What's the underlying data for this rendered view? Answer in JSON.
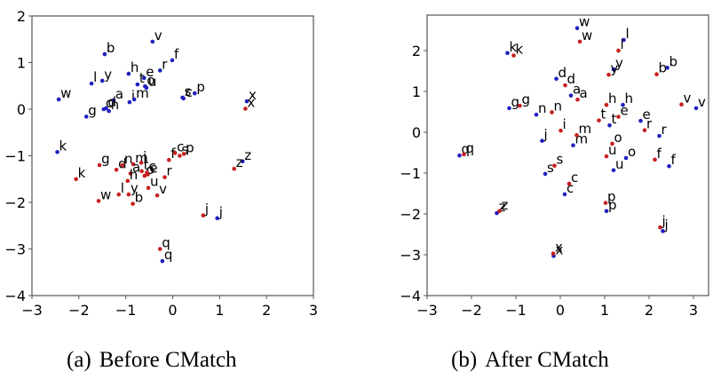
{
  "figure": {
    "captions": [
      {
        "tag": "(a)",
        "text": "Before CMatch"
      },
      {
        "tag": "(b)",
        "text": "After CMatch"
      }
    ]
  },
  "colors": {
    "series_blue": "#1f1fbf",
    "series_red": "#c81e1e",
    "axis": "#555555",
    "text": "#000000"
  },
  "chart_data": [
    {
      "type": "scatter",
      "title": "(a) Before CMatch",
      "xlabel": "",
      "ylabel": "",
      "xlim": [
        -3,
        3
      ],
      "ylim": [
        -4,
        2
      ],
      "xticks": [
        -3,
        -2,
        -1,
        0,
        1,
        2,
        3
      ],
      "yticks": [
        -4,
        -3,
        -2,
        -1,
        0,
        1,
        2
      ],
      "grid": false,
      "legend": null,
      "series": [
        {
          "name": "blue",
          "color": "#1f1fbf",
          "points": [
            {
              "label": "v",
              "x": -0.43,
              "y": 1.45
            },
            {
              "label": "b",
              "x": -1.45,
              "y": 1.18
            },
            {
              "label": "f",
              "x": -0.01,
              "y": 1.05
            },
            {
              "label": "r",
              "x": -0.27,
              "y": 0.83
            },
            {
              "label": "h",
              "x": -0.94,
              "y": 0.76
            },
            {
              "label": "e",
              "x": -0.61,
              "y": 0.67
            },
            {
              "label": "l",
              "x": -1.73,
              "y": 0.55
            },
            {
              "label": "y",
              "x": -1.5,
              "y": 0.61
            },
            {
              "label": "t",
              "x": -0.75,
              "y": 0.53
            },
            {
              "label": "o",
              "x": -0.59,
              "y": 0.49
            },
            {
              "label": "u",
              "x": -0.56,
              "y": 0.46
            },
            {
              "label": "a",
              "x": -1.26,
              "y": 0.19
            },
            {
              "label": "i",
              "x": -0.92,
              "y": 0.15
            },
            {
              "label": "m",
              "x": -0.82,
              "y": 0.21
            },
            {
              "label": "c",
              "x": -1.47,
              "y": 0.0
            },
            {
              "label": "d",
              "x": -1.42,
              "y": 0.02
            },
            {
              "label": "n",
              "x": -1.36,
              "y": -0.04
            },
            {
              "label": "g",
              "x": -1.84,
              "y": -0.16
            },
            {
              "label": "w",
              "x": -2.43,
              "y": 0.21
            },
            {
              "label": "s",
              "x": 0.21,
              "y": 0.25
            },
            {
              "label": "c",
              "x": 0.23,
              "y": 0.23
            },
            {
              "label": "p",
              "x": 0.47,
              "y": 0.34
            },
            {
              "label": "x",
              "x": 1.58,
              "y": 0.17
            },
            {
              "label": "k",
              "x": -2.46,
              "y": -0.92
            },
            {
              "label": "z",
              "x": 1.49,
              "y": -1.12
            },
            {
              "label": "j",
              "x": 0.95,
              "y": -2.34
            },
            {
              "label": "q",
              "x": -0.22,
              "y": -3.26
            }
          ]
        },
        {
          "name": "red",
          "color": "#c81e1e",
          "points": [
            {
              "label": "x",
              "x": 1.55,
              "y": 0.01
            },
            {
              "label": "g",
              "x": -1.56,
              "y": -1.2
            },
            {
              "label": "d",
              "x": -1.2,
              "y": -1.3
            },
            {
              "label": "n",
              "x": -1.07,
              "y": -1.2
            },
            {
              "label": "m",
              "x": -0.84,
              "y": -1.18
            },
            {
              "label": "i",
              "x": -0.67,
              "y": -1.15
            },
            {
              "label": "k",
              "x": -2.06,
              "y": -1.5
            },
            {
              "label": "a",
              "x": -0.9,
              "y": -1.38
            },
            {
              "label": "h",
              "x": -0.96,
              "y": -1.54
            },
            {
              "label": "t",
              "x": -0.66,
              "y": -1.33
            },
            {
              "label": "e",
              "x": -0.53,
              "y": -1.4
            },
            {
              "label": "o",
              "x": -0.6,
              "y": -1.43
            },
            {
              "label": "c",
              "x": -0.55,
              "y": -1.36
            },
            {
              "label": "r",
              "x": -0.17,
              "y": -1.46
            },
            {
              "label": "f",
              "x": -0.08,
              "y": -1.09
            },
            {
              "label": "c",
              "x": 0.05,
              "y": -0.94
            },
            {
              "label": "s",
              "x": 0.15,
              "y": -1.0
            },
            {
              "label": "p",
              "x": 0.24,
              "y": -0.96
            },
            {
              "label": "u",
              "x": -0.52,
              "y": -1.69
            },
            {
              "label": "v",
              "x": -0.33,
              "y": -1.85
            },
            {
              "label": "l",
              "x": -1.15,
              "y": -1.83
            },
            {
              "label": "y",
              "x": -0.94,
              "y": -1.83
            },
            {
              "label": "b",
              "x": -0.85,
              "y": -2.03
            },
            {
              "label": "w",
              "x": -1.58,
              "y": -1.97
            },
            {
              "label": "z",
              "x": 1.31,
              "y": -1.28
            },
            {
              "label": "j",
              "x": 0.65,
              "y": -2.28
            },
            {
              "label": "q",
              "x": -0.27,
              "y": -3.0
            }
          ]
        }
      ]
    },
    {
      "type": "scatter",
      "title": "(b) After CMatch",
      "xlabel": "",
      "ylabel": "",
      "xlim": [
        -3,
        3.34
      ],
      "ylim": [
        -4,
        2.87
      ],
      "xticks": [
        -3,
        -2,
        -1,
        0,
        1,
        2,
        3
      ],
      "yticks": [
        -4,
        -3,
        -2,
        -1,
        0,
        1,
        2
      ],
      "grid": false,
      "legend": null,
      "series": [
        {
          "name": "blue",
          "color": "#1f1fbf",
          "points": [
            {
              "label": "w",
              "x": 0.38,
              "y": 2.55
            },
            {
              "label": "l",
              "x": 1.43,
              "y": 2.26
            },
            {
              "label": "k",
              "x": -1.19,
              "y": 1.94
            },
            {
              "label": "y",
              "x": 1.2,
              "y": 1.54
            },
            {
              "label": "b",
              "x": 2.41,
              "y": 1.58
            },
            {
              "label": "d",
              "x": -0.09,
              "y": 1.31
            },
            {
              "label": "a",
              "x": 0.24,
              "y": 0.9
            },
            {
              "label": "g",
              "x": -1.15,
              "y": 0.59
            },
            {
              "label": "h",
              "x": 1.41,
              "y": 0.67
            },
            {
              "label": "v",
              "x": 3.06,
              "y": 0.59
            },
            {
              "label": "n",
              "x": -0.54,
              "y": 0.43
            },
            {
              "label": "e",
              "x": 1.81,
              "y": 0.28
            },
            {
              "label": "t",
              "x": 1.11,
              "y": 0.17
            },
            {
              "label": "r",
              "x": 2.23,
              "y": -0.09
            },
            {
              "label": "j",
              "x": -0.41,
              "y": -0.21
            },
            {
              "label": "m",
              "x": 0.29,
              "y": -0.32
            },
            {
              "label": "o",
              "x": 1.48,
              "y": -0.63
            },
            {
              "label": "f",
              "x": 2.45,
              "y": -0.83
            },
            {
              "label": "u",
              "x": 1.2,
              "y": -0.93
            },
            {
              "label": "s",
              "x": -0.34,
              "y": -1.02
            },
            {
              "label": "c",
              "x": 0.1,
              "y": -1.52
            },
            {
              "label": "q",
              "x": -2.27,
              "y": -0.57
            },
            {
              "label": "z",
              "x": -1.43,
              "y": -1.98
            },
            {
              "label": "p",
              "x": 1.04,
              "y": -1.93
            },
            {
              "label": "j",
              "x": 2.31,
              "y": -2.42
            },
            {
              "label": "x",
              "x": -0.15,
              "y": -3.03
            }
          ]
        },
        {
          "name": "red",
          "color": "#c81e1e",
          "points": [
            {
              "label": "w",
              "x": 0.44,
              "y": 2.22
            },
            {
              "label": "l",
              "x": 1.31,
              "y": 2.0
            },
            {
              "label": "k",
              "x": -1.05,
              "y": 1.88
            },
            {
              "label": "y",
              "x": 1.09,
              "y": 1.41
            },
            {
              "label": "b",
              "x": 2.17,
              "y": 1.42
            },
            {
              "label": "d",
              "x": 0.11,
              "y": 1.15
            },
            {
              "label": "a",
              "x": 0.39,
              "y": 0.8
            },
            {
              "label": "g",
              "x": -0.91,
              "y": 0.65
            },
            {
              "label": "h",
              "x": 1.04,
              "y": 0.67
            },
            {
              "label": "v",
              "x": 2.73,
              "y": 0.68
            },
            {
              "label": "n",
              "x": -0.19,
              "y": 0.49
            },
            {
              "label": "t",
              "x": 0.87,
              "y": 0.29
            },
            {
              "label": "e",
              "x": 1.31,
              "y": 0.38
            },
            {
              "label": "r",
              "x": 1.9,
              "y": 0.05
            },
            {
              "label": "i",
              "x": 0.01,
              "y": 0.04
            },
            {
              "label": "m",
              "x": 0.37,
              "y": -0.07
            },
            {
              "label": "o",
              "x": 1.17,
              "y": -0.28
            },
            {
              "label": "u",
              "x": 1.04,
              "y": -0.59
            },
            {
              "label": "f",
              "x": 2.13,
              "y": -0.67
            },
            {
              "label": "s",
              "x": -0.13,
              "y": -0.82
            },
            {
              "label": "c",
              "x": 0.2,
              "y": -1.26
            },
            {
              "label": "q",
              "x": -2.17,
              "y": -0.54
            },
            {
              "label": "z",
              "x": -1.37,
              "y": -1.93
            },
            {
              "label": "p",
              "x": 1.02,
              "y": -1.73
            },
            {
              "label": "j",
              "x": 2.25,
              "y": -2.33
            },
            {
              "label": "x",
              "x": -0.16,
              "y": -2.97
            }
          ]
        }
      ]
    }
  ]
}
